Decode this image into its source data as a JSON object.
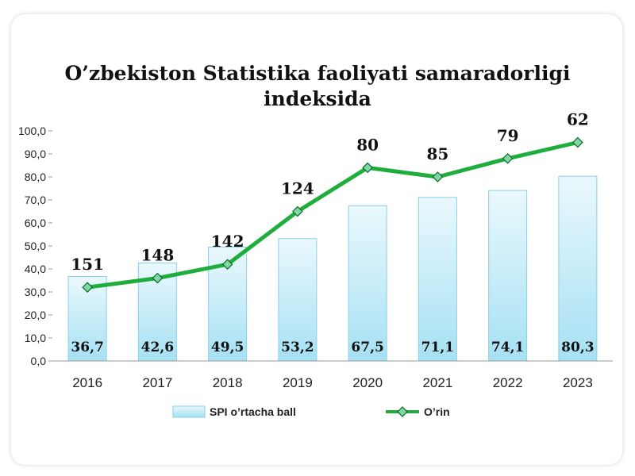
{
  "chart_data": {
    "type": "bar",
    "title_lines": [
      "O’zbekiston Statistika faoliyati samaradorligi",
      "indeksida"
    ],
    "categories": [
      "2016",
      "2017",
      "2018",
      "2019",
      "2020",
      "2021",
      "2022",
      "2023"
    ],
    "ylim": [
      0,
      100
    ],
    "yticks": [
      "0,0",
      "10,0",
      "20,0",
      "30,0",
      "40,0",
      "50,0",
      "60,0",
      "70,0",
      "80,0",
      "90,0",
      "100,0"
    ],
    "grid": false,
    "legend_position": "bottom",
    "series": [
      {
        "name": "SPI o’rtacha ball",
        "kind": "bar",
        "values": [
          36.7,
          42.6,
          49.5,
          53.2,
          67.5,
          71.1,
          74.1,
          80.3
        ],
        "labels": [
          "36,7",
          "42,6",
          "49,5",
          "53,2",
          "67,5",
          "71,1",
          "74,1",
          "80,3"
        ],
        "color": "#bfe9f7"
      },
      {
        "name": "O’rin",
        "kind": "line",
        "values": [
          32,
          36,
          42,
          65,
          84,
          80,
          88,
          95
        ],
        "labels": [
          "151",
          "148",
          "142",
          "124",
          "80",
          "85",
          "79",
          "62"
        ],
        "color": "#1fae3c",
        "marker_color": "#7fd6a6"
      }
    ]
  }
}
